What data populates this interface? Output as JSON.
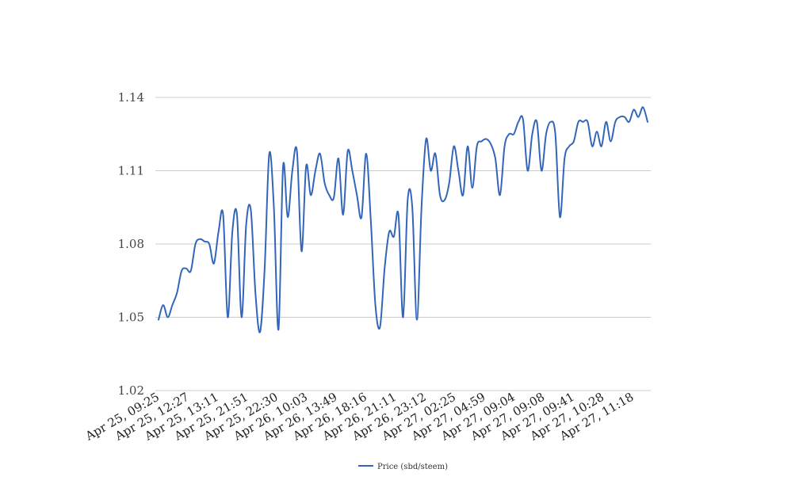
{
  "chart_data": {
    "type": "line",
    "title": "",
    "xlabel": "",
    "ylabel": "",
    "ylim": [
      1.02,
      1.14
    ],
    "yticks": [
      "1.02",
      "1.05",
      "1.08",
      "1.11",
      "1.14"
    ],
    "grid": true,
    "legend_position": "bottom-center",
    "x_tick_labels": [
      "Apr 25, 09:25",
      "Apr 25, 12:27",
      "Apr 25, 13:11",
      "Apr 25, 21:51",
      "Apr 25, 22:30",
      "Apr 26, 10:03",
      "Apr 26, 13:49",
      "Apr 26, 18:16",
      "Apr 26, 21:11",
      "Apr 26, 23:12",
      "Apr 27, 02:25",
      "Apr 27, 04:59",
      "Apr 27, 09:04",
      "Apr 27, 09:08",
      "Apr 27, 09:41",
      "Apr 27, 10:28",
      "Apr 27, 11:18"
    ],
    "series": [
      {
        "name": "Price (sbd/steem)",
        "color": "#3366bb",
        "values": [
          1.049,
          1.055,
          1.05,
          1.055,
          1.06,
          1.069,
          1.07,
          1.069,
          1.08,
          1.082,
          1.081,
          1.08,
          1.072,
          1.085,
          1.092,
          1.05,
          1.085,
          1.092,
          1.05,
          1.088,
          1.094,
          1.06,
          1.044,
          1.07,
          1.117,
          1.095,
          1.045,
          1.112,
          1.091,
          1.11,
          1.118,
          1.077,
          1.112,
          1.1,
          1.11,
          1.117,
          1.105,
          1.1,
          1.099,
          1.115,
          1.092,
          1.118,
          1.11,
          1.1,
          1.091,
          1.117,
          1.09,
          1.055,
          1.046,
          1.07,
          1.085,
          1.083,
          1.092,
          1.05,
          1.098,
          1.095,
          1.049,
          1.095,
          1.123,
          1.11,
          1.117,
          1.1,
          1.098,
          1.105,
          1.12,
          1.11,
          1.1,
          1.12,
          1.103,
          1.12,
          1.122,
          1.123,
          1.121,
          1.115,
          1.1,
          1.12,
          1.125,
          1.125,
          1.13,
          1.131,
          1.11,
          1.125,
          1.13,
          1.11,
          1.125,
          1.13,
          1.125,
          1.091,
          1.115,
          1.12,
          1.122,
          1.13,
          1.13,
          1.13,
          1.12,
          1.126,
          1.12,
          1.13,
          1.122,
          1.13,
          1.132,
          1.132,
          1.13,
          1.135,
          1.132,
          1.136,
          1.13
        ]
      }
    ]
  }
}
